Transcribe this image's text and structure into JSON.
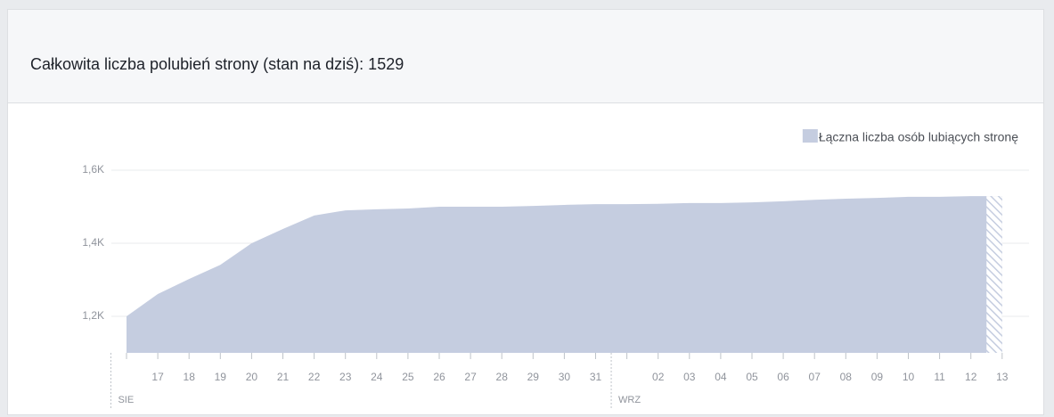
{
  "chart_data": {
    "type": "area",
    "title": "Całkowita liczba polubień strony (stan na dziś): 1529",
    "categories": [
      null,
      "17",
      "18",
      "19",
      "20",
      "21",
      "22",
      "23",
      "24",
      "25",
      "26",
      "27",
      "28",
      "29",
      "30",
      "31",
      null,
      "02",
      "03",
      "04",
      "05",
      "06",
      "07",
      "08",
      "09",
      "10",
      "11",
      "12",
      "13"
    ],
    "x_groups": [
      {
        "label": "SIE",
        "start": 0
      },
      {
        "label": "WRZ",
        "start": 16
      }
    ],
    "series": [
      {
        "name": "Łączna liczba osób lubiących stronę",
        "color": "#c5cde0",
        "values": [
          1200,
          1261,
          1302,
          1341,
          1400,
          1439,
          1476,
          1490,
          1493,
          1495,
          1500,
          1500,
          1500,
          1502,
          1505,
          1507,
          1507,
          1508,
          1510,
          1510,
          1512,
          1515,
          1519,
          1522,
          1524,
          1527,
          1527,
          1529,
          1529
        ]
      }
    ],
    "ylim": [
      1100,
      1600
    ],
    "yticks": [
      {
        "value": 1200,
        "label": "1,2K"
      },
      {
        "value": 1400,
        "label": "1,4K"
      },
      {
        "value": 1600,
        "label": "1,6K"
      }
    ],
    "grid": true,
    "legend": "top-right"
  }
}
